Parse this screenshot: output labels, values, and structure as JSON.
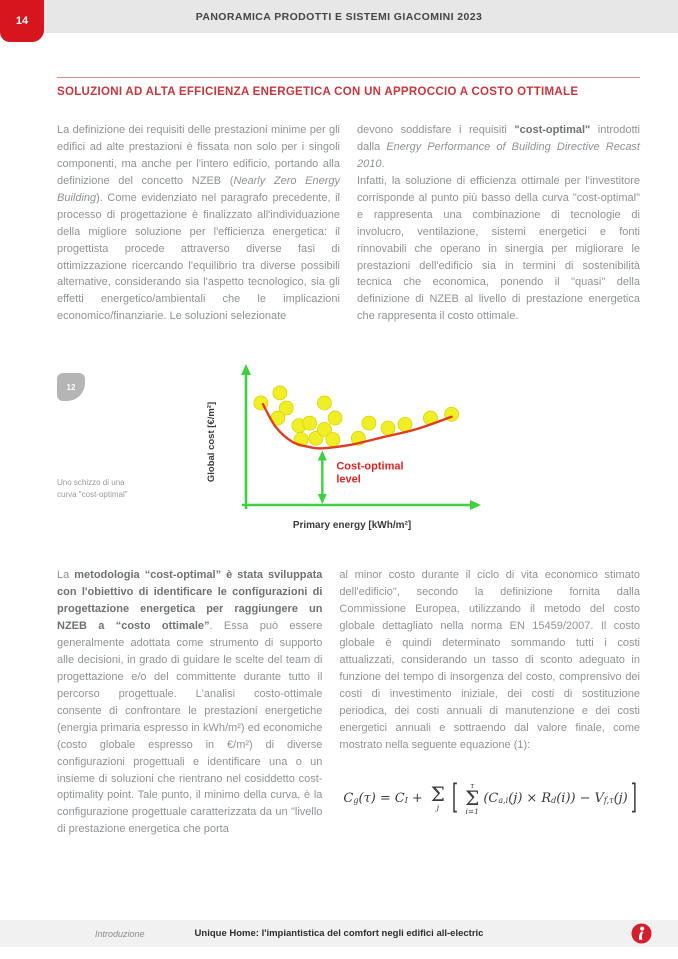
{
  "page": {
    "number": "14"
  },
  "header": {
    "title": "PANORAMICA PRODOTTI E SISTEMI GIACOMINI 2023"
  },
  "section": {
    "title": "SOLUZIONI AD ALTA EFFICIENZA ENERGETICA CON UN APPROCCIO A COSTO OTTIMALE"
  },
  "intro": {
    "left": {
      "s1": "La definizione dei requisiti delle prestazioni minime per gli edifici ad alte prestazioni è fissata non solo per i singoli componenti, ma anche per l'intero edificio, portando alla definizione del concetto NZEB (",
      "s2_italic": "Nearly Zero Energy Building",
      "s3": "). Come evidenziato nel paragrafo precedente, il processo di progettazione è finalizzato all'individuazione della migliore soluzione per l'efficienza energetica: il progettista procede attraverso diverse fasi di ottimizzazione ricercando l'equilibrio tra diverse possibili alternative, considerando sia l'aspetto tecnologico, sia gli effetti energetico/ambientali che le implicazioni economico/finanziarie. Le soluzioni selezionate"
    },
    "right": {
      "s1": "devono soddisfare i requisiti ",
      "s2_bold": "\"cost-optimal\"",
      "s3": " introdotti dalla ",
      "s4_italic": "Energy Performance of Building Directive Recast 2010",
      "s5": ".",
      "p2": "Infatti, la soluzione di efficienza ottimale per l'investitore corrisponde al punto più basso della curva \"cost-optimal\" e rappresenta una combinazione di tecnologie di involucro, ventilazione, sistemi energetici e fonti rinnovabili che operano in sinergia per migliorare le prestazioni dell'edificio sia in termini di sostenibilità tecnica che economica, ponendo il \"quasi\" della definizione di NZEB al livello di prestazione energetica che rappresenta il costo ottimale."
    }
  },
  "figure": {
    "badge": "12",
    "caption_line1": "Uno schizzo di una",
    "caption_line2": "curva \"cost-optimal\""
  },
  "chart_data": {
    "type": "scatter",
    "title": "Sketch of a cost-optimal curve",
    "xlabel": "Primary energy [kWh/m²]",
    "ylabel": "Global cost [€/m²]",
    "annotation": [
      "Cost-optimal",
      "level"
    ],
    "legend": [],
    "axis_numeric_ticks": false,
    "points_pct": [
      [
        7,
        81
      ],
      [
        16,
        89
      ],
      [
        19,
        77
      ],
      [
        15,
        69
      ],
      [
        25,
        63
      ],
      [
        30,
        65
      ],
      [
        26,
        52
      ],
      [
        33,
        53
      ],
      [
        37,
        81
      ],
      [
        37,
        60
      ],
      [
        41,
        52
      ],
      [
        42,
        69
      ],
      [
        53,
        53
      ],
      [
        58,
        65
      ],
      [
        67,
        61
      ],
      [
        75,
        64
      ],
      [
        87,
        69
      ],
      [
        97,
        72
      ]
    ],
    "curve_pct": [
      [
        8,
        80
      ],
      [
        14,
        62
      ],
      [
        22,
        50
      ],
      [
        30,
        46
      ],
      [
        36,
        45
      ],
      [
        50,
        48
      ],
      [
        65,
        54
      ],
      [
        80,
        60
      ],
      [
        97,
        70
      ]
    ],
    "cost_optimal_x_pct": 36,
    "cost_optimal_top_pct": 44,
    "colors": {
      "axis": "#3ed13e",
      "dots": "#f0ee25",
      "dot_edge": "#dcd400",
      "curve": "#e03c20",
      "label": "#e02424",
      "axis_label": "#3c3c3c"
    }
  },
  "body": {
    "left": {
      "s1": "La ",
      "s2_bold": "metodologia “cost-optimal” è stata sviluppata con l'obiettivo di identificare le configurazioni di progettazione energetica per raggiungere un NZEB a “costo ottimale”",
      "s3": ". Essa può essere generalmente adottata come strumento di supporto alle decisioni, in grado di guidare le scelte del team di progettazione e/o del committente durante tutto il percorso progettuale. L'analisi costo-ottimale consente di confrontare le prestazioni energetiche (energia primaria espresso in kWh/m²) ed economiche (costo globale espresso in €/m²) di diverse configurazioni progettuali e identificare una o un insieme di soluzioni che rientrano nel cosiddetto cost-optimality point. Tale punto, il minimo della curva, è la configurazione progettuale caratterizzata da un \"livello di prestazione energetica che porta"
    },
    "right": "al minor costo durante il ciclo di vita economico stimato dell'edificio\", secondo la definizione fornita dalla Commissione Europea, utilizzando il metodo del costo globale dettagliato nella norma EN 15459/2007. Il costo globale è quindi determinato sommando tutti i costi attualizzati, considerando un tasso di sconto adeguato in funzione del tempo di insorgenza del costo, comprensivo dei costi di investimento iniziale, dei costi di sostituzione periodica, dei costi annuali di manutenzione e dei costi energetici annuali e sottraendo dal valore finale, come mostrato nella seguente equazione (1):"
  },
  "equation": {
    "ascii": "Cg(τ) = CI + Σj [ Σ(i=1..τ) (Ca,i(j) × Rd(i)) − Vf,τ(j) ]",
    "lhs_base": "C",
    "lhs_sub": "g",
    "lhs_arg": "(τ)",
    "equals": "=",
    "c_base": "C",
    "c_sub": "I",
    "plus": "+",
    "sigma1": "Σ",
    "sum1_bot": "j",
    "bracket_open": "[",
    "sum2_top": "τ",
    "sigma2": "Σ",
    "sum2_bot": "i=1",
    "term1_base": "(C",
    "term1_sub": "a,i",
    "term1_arg": "(j)",
    "times": "×",
    "term2_base": "R",
    "term2_sub": "d",
    "term2_arg": "(i))",
    "minus": "−",
    "term3_base": "V",
    "term3_sub": "f,τ",
    "term3_arg": "(j)",
    "bracket_close": "]"
  },
  "footer": {
    "left": "Introduzione",
    "center": "Unique Home: l'impiantistica del comfort negli edifici all-electric"
  }
}
